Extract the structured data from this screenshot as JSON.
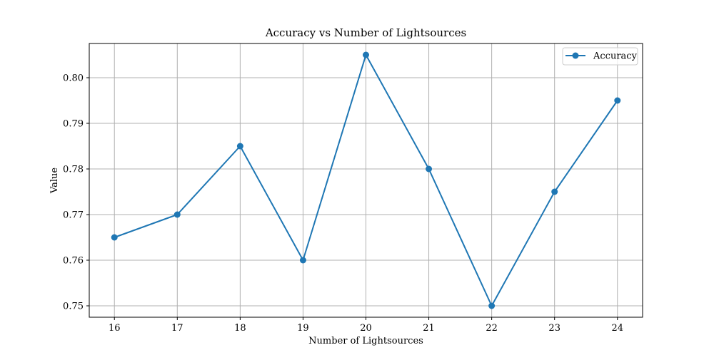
{
  "chart_data": {
    "type": "line",
    "title": "Accuracy vs Number of Lightsources",
    "xlabel": "Number of Lightsources",
    "ylabel": "Value",
    "x": [
      16,
      17,
      18,
      19,
      20,
      21,
      22,
      23,
      24
    ],
    "series": [
      {
        "name": "Accuracy",
        "values": [
          0.765,
          0.77,
          0.785,
          0.76,
          0.805,
          0.78,
          0.75,
          0.775,
          0.795
        ],
        "color": "#1f77b4",
        "marker": "circle"
      }
    ],
    "xticks": [
      "16",
      "17",
      "18",
      "19",
      "20",
      "21",
      "22",
      "23",
      "24"
    ],
    "yticks": [
      "0.75",
      "0.76",
      "0.77",
      "0.78",
      "0.79",
      "0.80"
    ],
    "ytick_values": [
      0.75,
      0.76,
      0.77,
      0.78,
      0.79,
      0.8
    ],
    "xlim": [
      15.6,
      24.4
    ],
    "ylim": [
      0.7475,
      0.8075
    ],
    "grid": true,
    "legend_position": "top-right"
  }
}
